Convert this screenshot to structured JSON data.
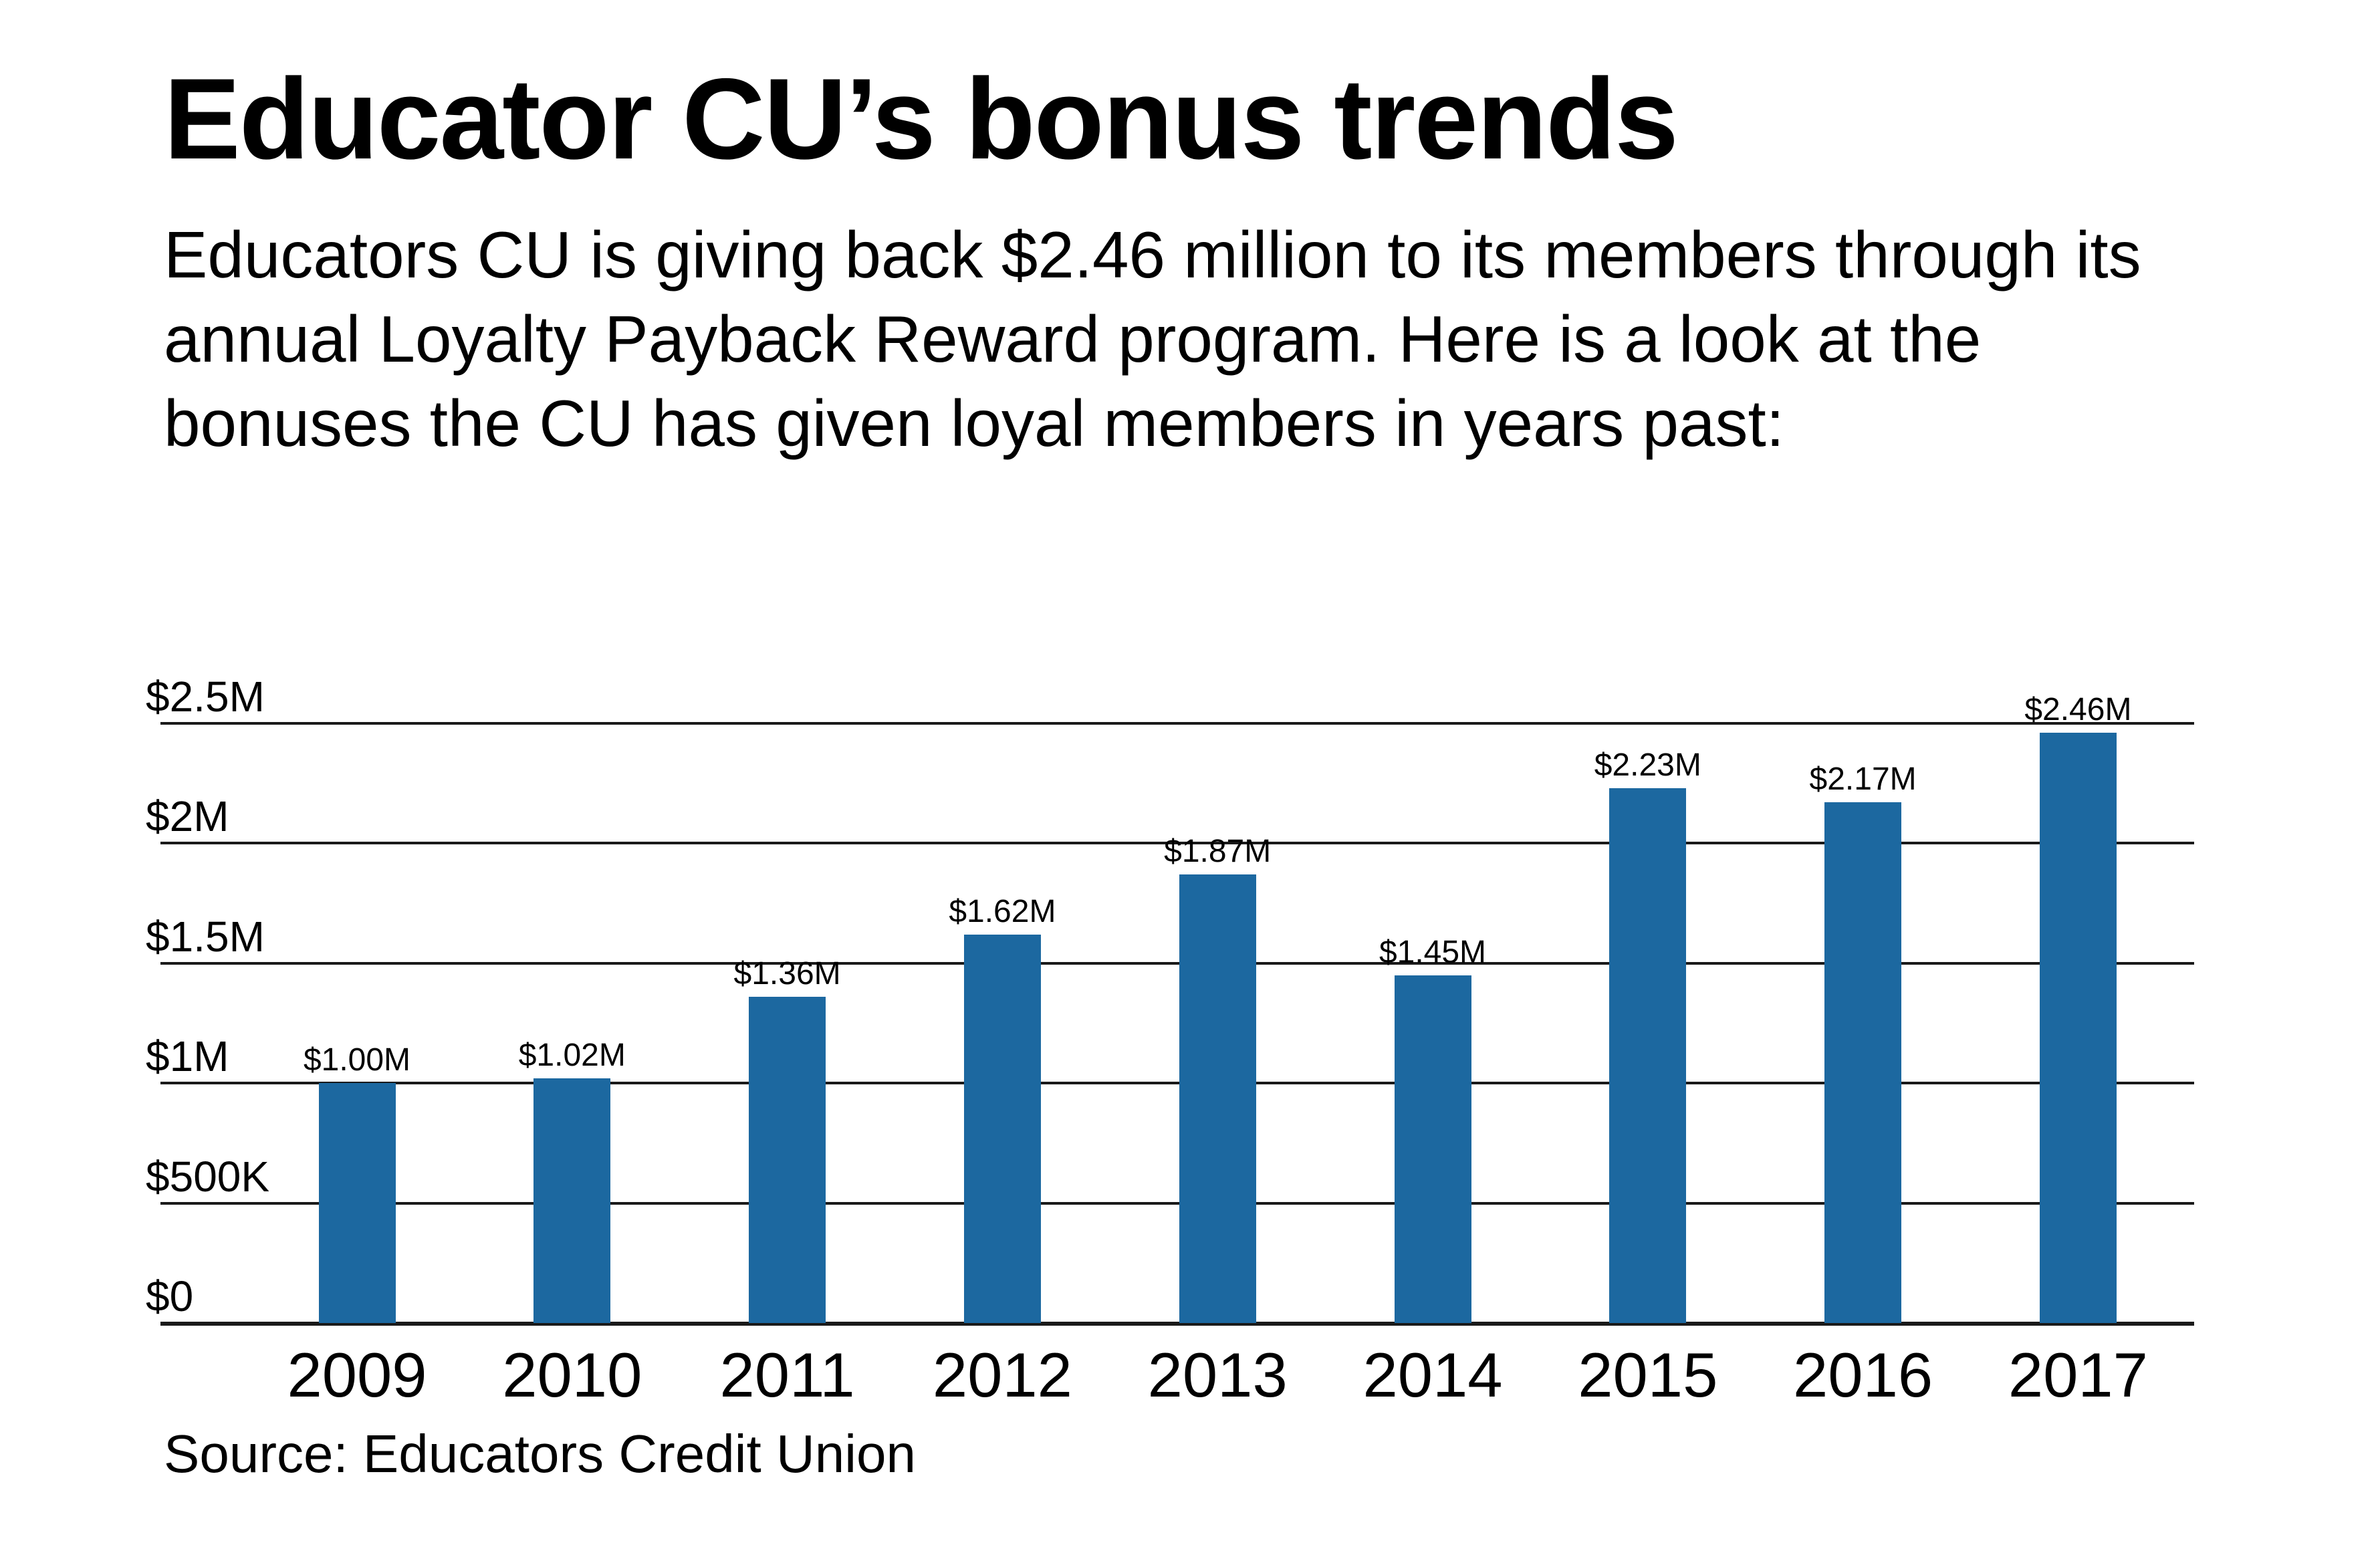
{
  "title": "Educator CU’s bonus trends",
  "subtitle": "Educators CU is giving back $2.46 million to its members through its annual Loyalty Payback Reward program. Here is a look at the bonuses the CU has given loyal members in years past:",
  "source": "Source: Educators Credit Union",
  "colors": {
    "bar": "#1c68a0",
    "grid": "#1a1a1a",
    "text": "#000000",
    "background": "#ffffff"
  },
  "chart_data": {
    "type": "bar",
    "title": "Educator CU’s bonus trends",
    "subtitle": "Educators CU is giving back $2.46 million to its members through its annual Loyalty Payback Reward program. Here is a look at the bonuses the CU has given loyal members in years past:",
    "xlabel": "",
    "ylabel": "",
    "categories": [
      "2009",
      "2010",
      "2011",
      "2012",
      "2013",
      "2014",
      "2015",
      "2016",
      "2017"
    ],
    "values": [
      1.0,
      1.02,
      1.36,
      1.62,
      1.87,
      1.45,
      2.23,
      2.17,
      2.46
    ],
    "value_unit": "millions USD",
    "data_labels": [
      "$1.00M",
      "$1.02M",
      "$1.36M",
      "$1.62M",
      "$1.87M",
      "$1.45M",
      "$2.23M",
      "$2.17M",
      "$2.46M"
    ],
    "ylim": [
      0,
      2.5
    ],
    "y_ticks": [
      0,
      0.5,
      1.0,
      1.5,
      2.0,
      2.5
    ],
    "y_tick_labels": [
      "$0",
      "$500K",
      "$1M",
      "$1.5M",
      "$2M",
      "$2.5M"
    ],
    "grid": true,
    "legend": null,
    "source": "Source: Educators Credit Union"
  }
}
